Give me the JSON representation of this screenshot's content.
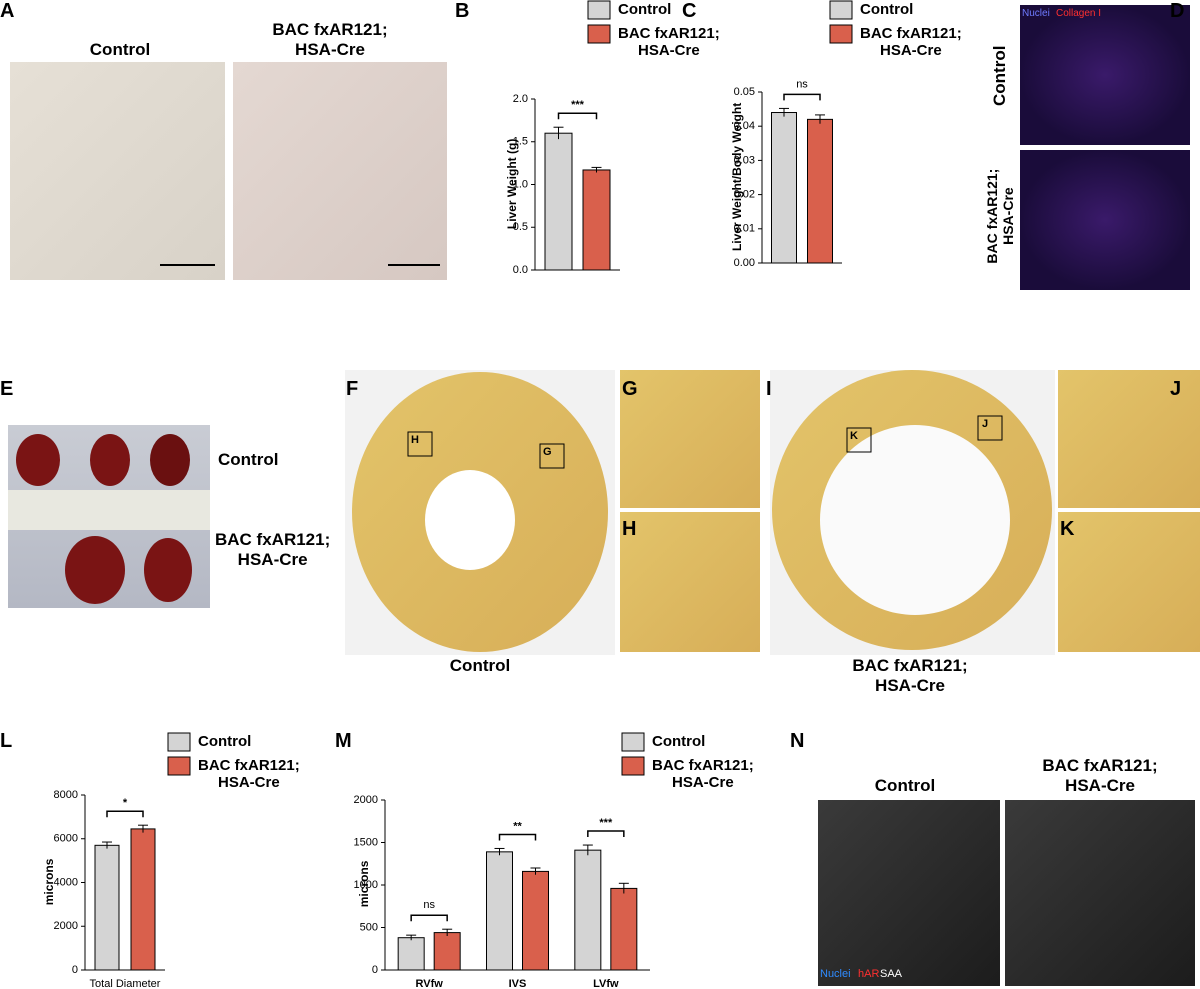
{
  "panel_letters": [
    "A",
    "B",
    "C",
    "D",
    "E",
    "F",
    "G",
    "H",
    "I",
    "J",
    "K",
    "L",
    "M",
    "N"
  ],
  "panel_a": {
    "headers": [
      "Control",
      "BAC fxAR121;\nHSA-Cre"
    ]
  },
  "panel_d": {
    "stain": [
      "Nuclei",
      "Collagen I"
    ],
    "rows": [
      "Control",
      "BAC fxAR121;\nHSA-Cre"
    ]
  },
  "panel_e": {
    "rows": [
      "Control",
      "BAC fxAR121;\nHSA-Cre"
    ]
  },
  "panel_f": {
    "caption": "Control",
    "boxes": [
      "H",
      "G"
    ]
  },
  "panel_i": {
    "caption": "BAC fxAR121;\nHSA-Cre",
    "boxes": [
      "K",
      "J"
    ]
  },
  "panel_n": {
    "headers": [
      "Control",
      "BAC fxAR121;\nHSA-Cre"
    ],
    "stain": [
      "Nuclei",
      "hAR",
      "SAA"
    ]
  },
  "chart_data": [
    {
      "type": "bar",
      "ylabel": "Liver Weight (g)",
      "categories": [
        null
      ],
      "annotations": [
        "***"
      ],
      "series": [
        {
          "name": "Control",
          "color": "#d4d4d4",
          "values": [
            1.6
          ],
          "errors": [
            0.07
          ]
        },
        {
          "name": "BAC fxAR121;\nHSA-Cre",
          "color": "#d9604c",
          "values": [
            1.17
          ],
          "errors": [
            0.03
          ]
        }
      ],
      "ylim": [
        0,
        2
      ],
      "yticks": [
        {
          "value": 0,
          "label": "0.0"
        },
        0.5,
        {
          "value": 1,
          "label": "1.0"
        },
        1.5,
        {
          "value": 2,
          "label": "2.0"
        }
      ]
    },
    {
      "type": "bar",
      "ylabel": "Liver Weight/Body Weight",
      "categories": [
        null
      ],
      "annotations": [
        "ns"
      ],
      "series": [
        {
          "name": "Control",
          "color": "#d4d4d4",
          "values": [
            0.044
          ],
          "errors": [
            0.0012
          ]
        },
        {
          "name": "BAC fxAR121;\nHSA-Cre",
          "color": "#d9604c",
          "values": [
            0.042
          ],
          "errors": [
            0.0013
          ]
        }
      ],
      "ylim": [
        0,
        0.05
      ],
      "yticks": [
        {
          "value": 0,
          "label": "0.00"
        },
        0.01,
        0.02,
        0.03,
        0.04,
        0.05
      ]
    },
    {
      "type": "bar",
      "ylabel": "microns",
      "categories": [
        "Total Diameter"
      ],
      "annotations": [
        "*"
      ],
      "series": [
        {
          "name": "Control",
          "color": "#d4d4d4",
          "values": [
            5700
          ],
          "errors": [
            150
          ]
        },
        {
          "name": "BAC fxAR121;\nHSA-Cre",
          "color": "#d9604c",
          "values": [
            6450
          ],
          "errors": [
            170
          ]
        }
      ],
      "ylim": [
        0,
        8000
      ],
      "yticks": [
        0,
        2000,
        4000,
        6000,
        8000
      ]
    },
    {
      "type": "bar",
      "ylabel": "microns",
      "categories": [
        "RVfw",
        "IVS",
        "LVfw"
      ],
      "annotations": [
        "ns",
        "**",
        "***"
      ],
      "series": [
        {
          "name": "Control",
          "color": "#d4d4d4",
          "values": [
            380,
            1390,
            1410
          ],
          "errors": [
            30,
            40,
            60
          ]
        },
        {
          "name": "BAC fxAR121;\nHSA-Cre",
          "color": "#d9604c",
          "values": [
            440,
            1160,
            960
          ],
          "errors": [
            40,
            40,
            60
          ]
        }
      ],
      "ylim": [
        0,
        2000
      ],
      "yticks": [
        0,
        500,
        1000,
        1500,
        2000
      ]
    }
  ]
}
